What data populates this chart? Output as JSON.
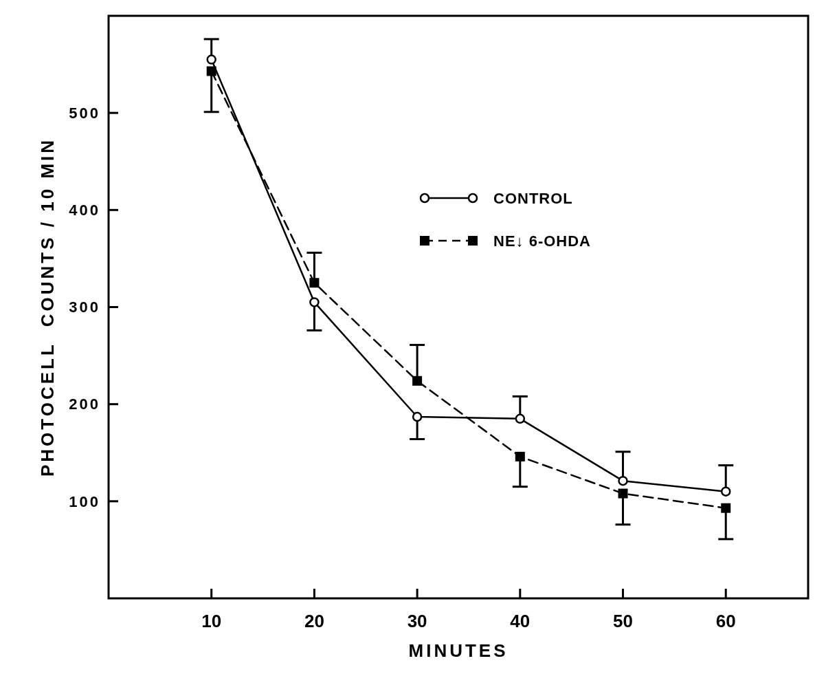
{
  "chart_data": {
    "type": "line",
    "xlabel": "MINUTES",
    "ylabel": "PHOTOCELL  COUNTS / 10 MIN",
    "x": [
      10,
      20,
      30,
      40,
      50,
      60
    ],
    "xlim": [
      0,
      68
    ],
    "xticks": [
      10,
      20,
      30,
      40,
      50,
      60
    ],
    "ylim": [
      0,
      600
    ],
    "yticks": [
      100,
      200,
      300,
      400,
      500
    ],
    "legend": "top right",
    "series": [
      {
        "name": "CONTROL",
        "color": "#000000",
        "marker": "circle",
        "line_style": "solid",
        "values": [
          555,
          305,
          187,
          185,
          121,
          110
        ],
        "errors": [
          [
            555,
            576
          ],
          [
            276,
            305
          ],
          [
            164,
            187
          ],
          [
            185,
            208
          ],
          [
            121,
            151
          ],
          [
            110,
            137
          ]
        ]
      },
      {
        "name": "NE↓ 6-OHDA",
        "color": "#000000",
        "marker": "square",
        "line_style": "dashed",
        "values": [
          543,
          325,
          224,
          146,
          108,
          93
        ],
        "errors": [
          [
            501,
            543
          ],
          [
            325,
            356
          ],
          [
            224,
            261
          ],
          [
            115,
            146
          ],
          [
            76,
            108
          ],
          [
            61,
            93
          ]
        ]
      }
    ]
  }
}
